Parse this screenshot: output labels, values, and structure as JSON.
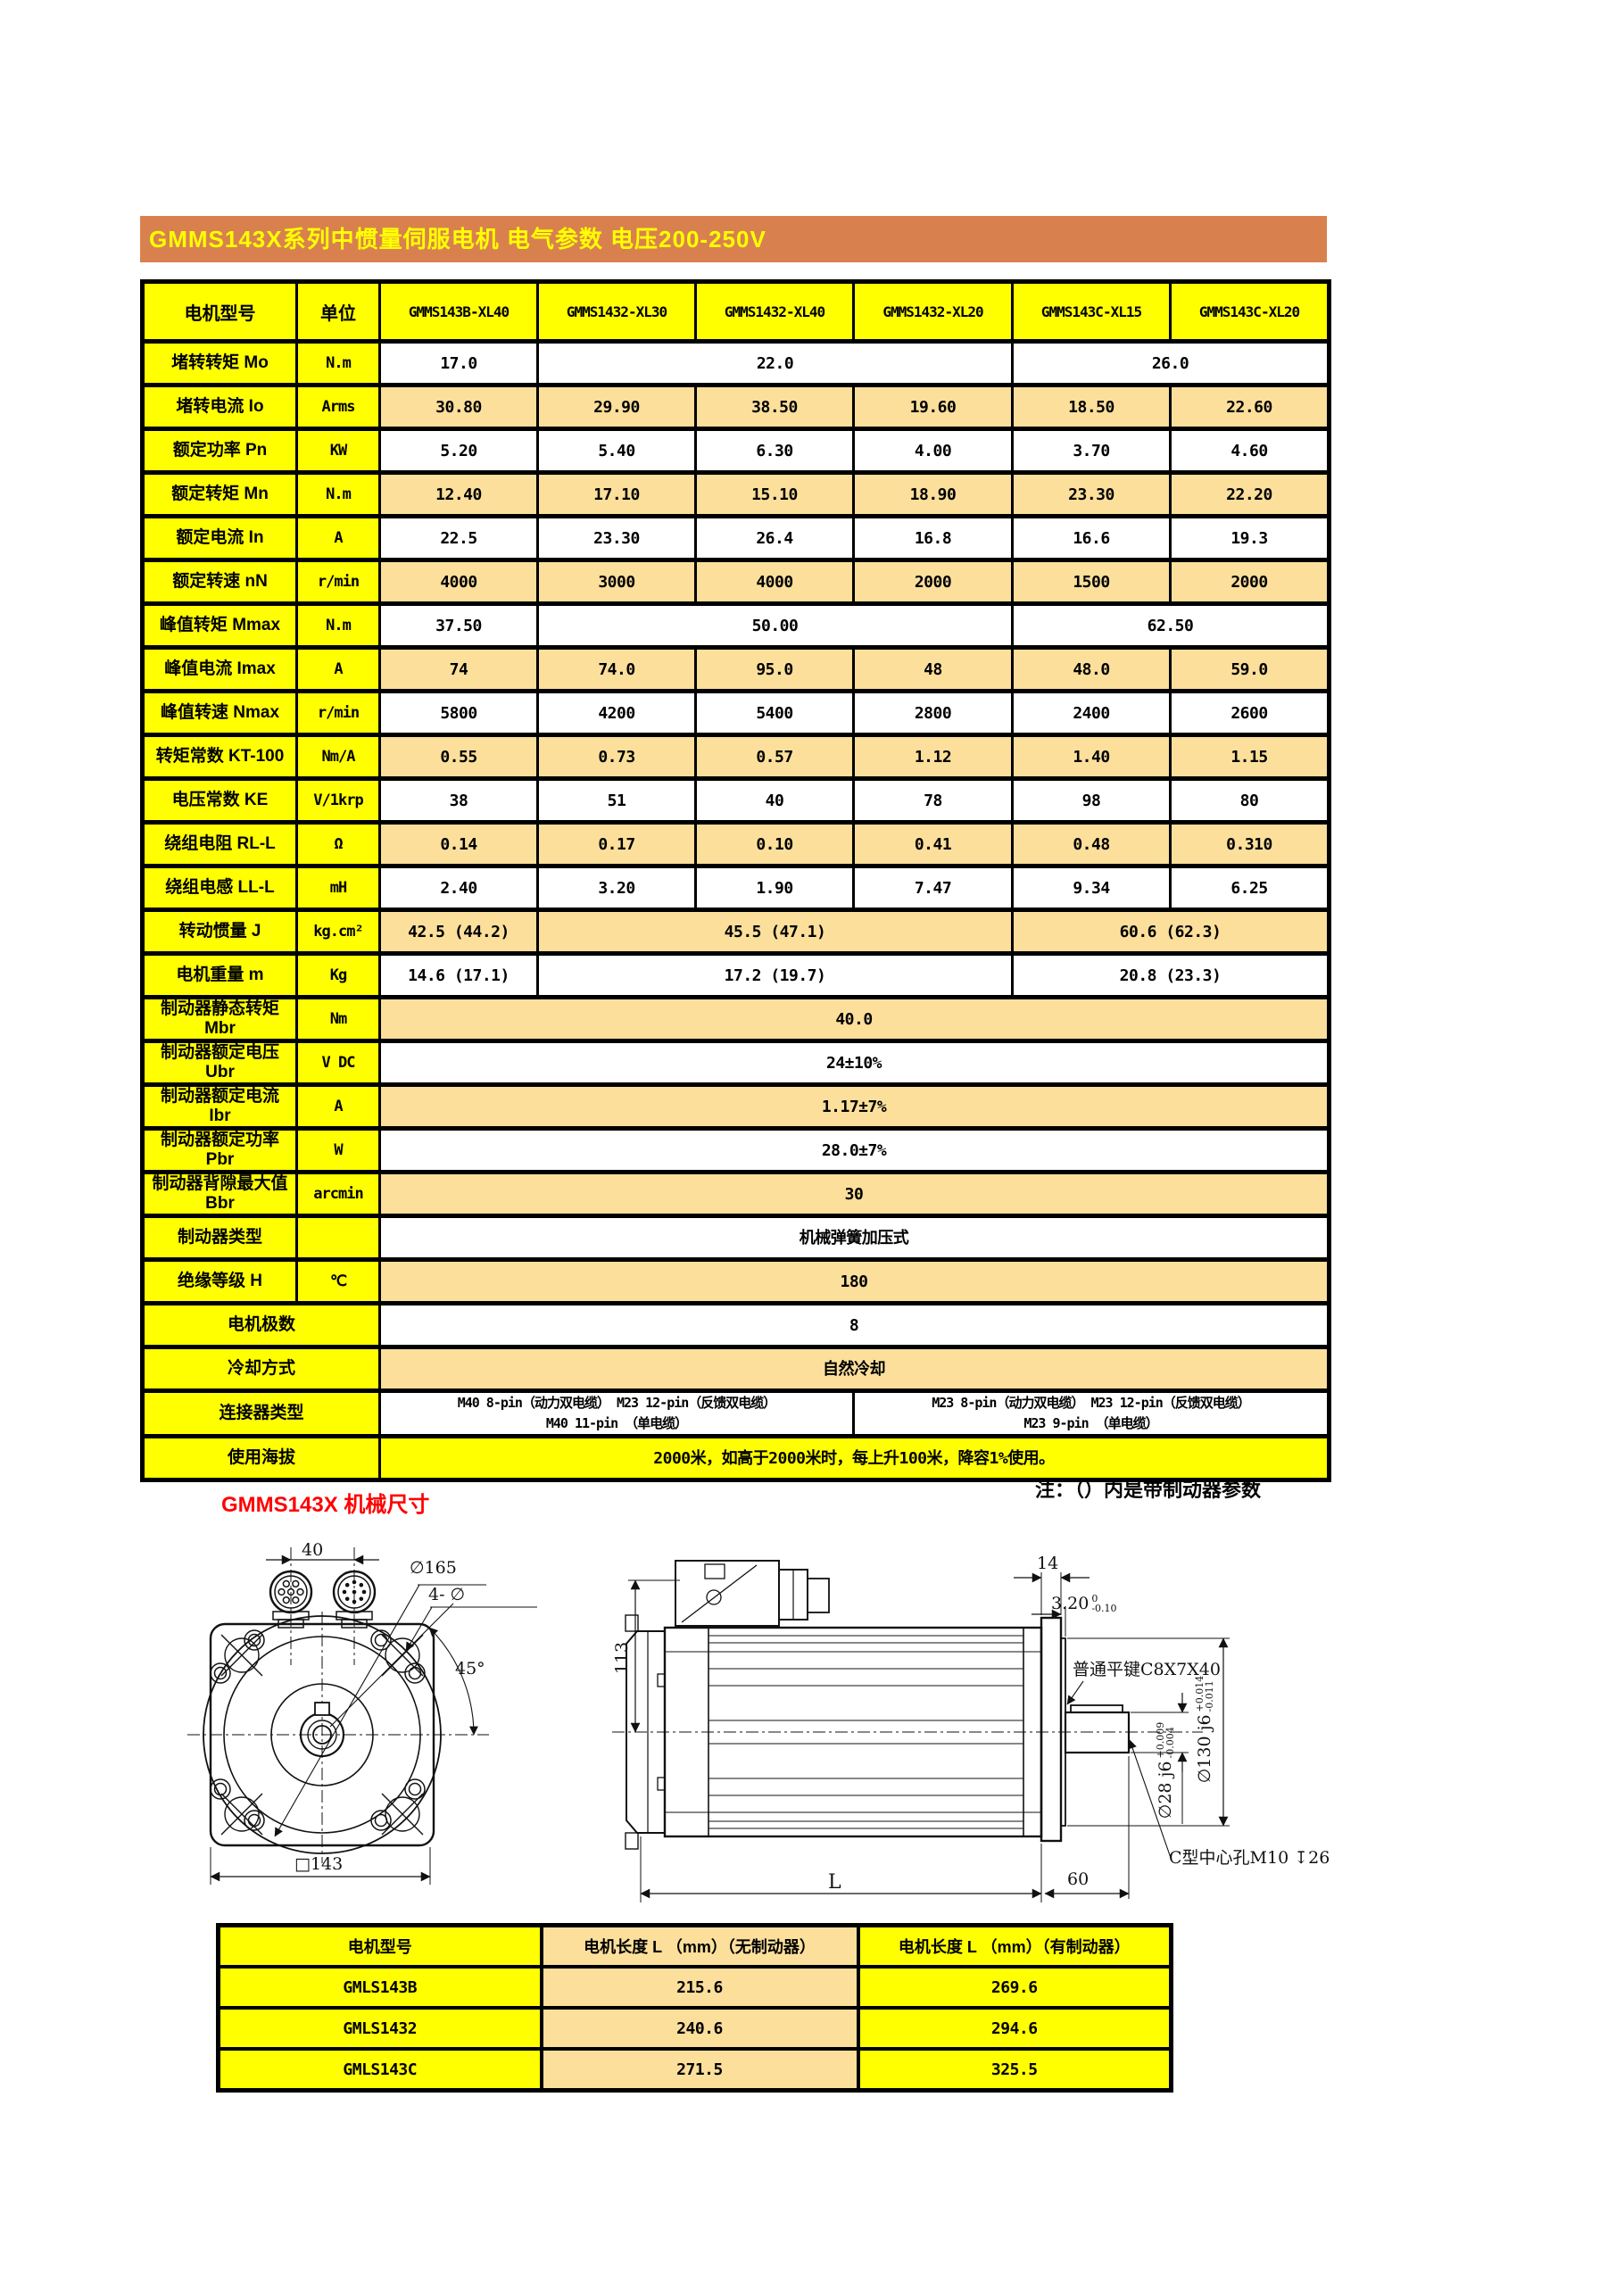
{
  "banner": {
    "title": "GMMS143X系列中惯量伺服电机 电气参数 电压200-250V",
    "bg": "#D9814E",
    "text_color": "#FFFF00"
  },
  "note": "注：（）内是带制动器参数",
  "section_title": "GMMS143X 机械尺寸",
  "colors": {
    "yellow": "#FFFF00",
    "tan": "#FBDF9B",
    "banner": "#D9814E",
    "red": "#FF0000"
  },
  "spec_table": {
    "columns": [
      "电机型号",
      "单位",
      "GMMS143B-XL40",
      "GMMS1432-XL30",
      "GMMS1432-XL40",
      "GMMS1432-XL20",
      "GMMS143C-XL15",
      "GMMS143C-XL20"
    ],
    "rows": [
      {
        "label": "堵转转矩 Mo",
        "unit": "N.m",
        "shade": "w",
        "cells": [
          {
            "v": "17.0",
            "span": 1
          },
          {
            "v": "22.0",
            "span": 3
          },
          {
            "v": "26.0",
            "span": 2
          }
        ]
      },
      {
        "label": "堵转电流 Io",
        "unit": "Arms",
        "shade": "t",
        "cells": [
          {
            "v": "30.80",
            "span": 1
          },
          {
            "v": "29.90",
            "span": 1
          },
          {
            "v": "38.50",
            "span": 1
          },
          {
            "v": "19.60",
            "span": 1
          },
          {
            "v": "18.50",
            "span": 1
          },
          {
            "v": "22.60",
            "span": 1
          }
        ]
      },
      {
        "label": "额定功率 Pn",
        "unit": "KW",
        "shade": "w",
        "cells": [
          {
            "v": "5.20",
            "span": 1
          },
          {
            "v": "5.40",
            "span": 1
          },
          {
            "v": "6.30",
            "span": 1
          },
          {
            "v": "4.00",
            "span": 1
          },
          {
            "v": "3.70",
            "span": 1
          },
          {
            "v": "4.60",
            "span": 1
          }
        ]
      },
      {
        "label": "额定转矩 Mn",
        "unit": "N.m",
        "shade": "t",
        "cells": [
          {
            "v": "12.40",
            "span": 1
          },
          {
            "v": "17.10",
            "span": 1
          },
          {
            "v": "15.10",
            "span": 1
          },
          {
            "v": "18.90",
            "span": 1
          },
          {
            "v": "23.30",
            "span": 1
          },
          {
            "v": "22.20",
            "span": 1
          }
        ]
      },
      {
        "label": "额定电流 In",
        "unit": "A",
        "shade": "w",
        "cells": [
          {
            "v": "22.5",
            "span": 1
          },
          {
            "v": "23.30",
            "span": 1
          },
          {
            "v": "26.4",
            "span": 1
          },
          {
            "v": "16.8",
            "span": 1
          },
          {
            "v": "16.6",
            "span": 1
          },
          {
            "v": "19.3",
            "span": 1
          }
        ]
      },
      {
        "label": "额定转速 nN",
        "unit": "r/min",
        "shade": "t",
        "cells": [
          {
            "v": "4000",
            "span": 1
          },
          {
            "v": "3000",
            "span": 1
          },
          {
            "v": "4000",
            "span": 1
          },
          {
            "v": "2000",
            "span": 1
          },
          {
            "v": "1500",
            "span": 1
          },
          {
            "v": "2000",
            "span": 1
          }
        ]
      },
      {
        "label": "峰值转矩 Mmax",
        "unit": "N.m",
        "shade": "w",
        "cells": [
          {
            "v": "37.50",
            "span": 1
          },
          {
            "v": "50.00",
            "span": 3
          },
          {
            "v": "62.50",
            "span": 2
          }
        ]
      },
      {
        "label": "峰值电流 Imax",
        "unit": "A",
        "shade": "t",
        "cells": [
          {
            "v": "74",
            "span": 1
          },
          {
            "v": "74.0",
            "span": 1
          },
          {
            "v": "95.0",
            "span": 1
          },
          {
            "v": "48",
            "span": 1
          },
          {
            "v": "48.0",
            "span": 1
          },
          {
            "v": "59.0",
            "span": 1
          }
        ]
      },
      {
        "label": "峰值转速 Nmax",
        "unit": "r/min",
        "shade": "w",
        "cells": [
          {
            "v": "5800",
            "span": 1
          },
          {
            "v": "4200",
            "span": 1
          },
          {
            "v": "5400",
            "span": 1
          },
          {
            "v": "2800",
            "span": 1
          },
          {
            "v": "2400",
            "span": 1
          },
          {
            "v": "2600",
            "span": 1
          }
        ]
      },
      {
        "label": "转矩常数 KT-100",
        "unit": "Nm/A",
        "shade": "t",
        "cells": [
          {
            "v": "0.55",
            "span": 1
          },
          {
            "v": "0.73",
            "span": 1
          },
          {
            "v": "0.57",
            "span": 1
          },
          {
            "v": "1.12",
            "span": 1
          },
          {
            "v": "1.40",
            "span": 1
          },
          {
            "v": "1.15",
            "span": 1
          }
        ]
      },
      {
        "label": "电压常数 KE",
        "unit": "V/1krp",
        "shade": "w",
        "cells": [
          {
            "v": "38",
            "span": 1
          },
          {
            "v": "51",
            "span": 1
          },
          {
            "v": "40",
            "span": 1
          },
          {
            "v": "78",
            "span": 1
          },
          {
            "v": "98",
            "span": 1
          },
          {
            "v": "80",
            "span": 1
          }
        ]
      },
      {
        "label": "绕组电阻 RL-L",
        "unit": "Ω",
        "shade": "t",
        "cells": [
          {
            "v": "0.14",
            "span": 1
          },
          {
            "v": "0.17",
            "span": 1
          },
          {
            "v": "0.10",
            "span": 1
          },
          {
            "v": "0.41",
            "span": 1
          },
          {
            "v": "0.48",
            "span": 1
          },
          {
            "v": "0.310",
            "span": 1
          }
        ]
      },
      {
        "label": "绕组电感 LL-L",
        "unit": "mH",
        "shade": "w",
        "cells": [
          {
            "v": "2.40",
            "span": 1
          },
          {
            "v": "3.20",
            "span": 1
          },
          {
            "v": "1.90",
            "span": 1
          },
          {
            "v": "7.47",
            "span": 1
          },
          {
            "v": "9.34",
            "span": 1
          },
          {
            "v": "6.25",
            "span": 1
          }
        ]
      },
      {
        "label": "转动惯量 J",
        "unit": "kg.cm²",
        "shade": "t",
        "cells": [
          {
            "v": "42.5 (44.2)",
            "span": 1
          },
          {
            "v": "45.5 (47.1)",
            "span": 3
          },
          {
            "v": "60.6 (62.3)",
            "span": 2
          }
        ]
      },
      {
        "label": "电机重量 m",
        "unit": "Kg",
        "shade": "w",
        "cells": [
          {
            "v": "14.6 (17.1)",
            "span": 1
          },
          {
            "v": "17.2 (19.7)",
            "span": 3
          },
          {
            "v": "20.8 (23.3)",
            "span": 2
          }
        ]
      },
      {
        "label": "制动器静态转矩\nMbr",
        "unit": "Nm",
        "shade": "t",
        "cells": [
          {
            "v": "40.0",
            "span": 6
          }
        ]
      },
      {
        "label": "制动器额定电压\nUbr",
        "unit": "V DC",
        "shade": "w",
        "cells": [
          {
            "v": "24±10%",
            "span": 6
          }
        ]
      },
      {
        "label": "制动器额定电流\nIbr",
        "unit": "A",
        "shade": "t",
        "cells": [
          {
            "v": "1.17±7%",
            "span": 6
          }
        ]
      },
      {
        "label": "制动器额定功率\nPbr",
        "unit": "W",
        "shade": "w",
        "cells": [
          {
            "v": "28.0±7%",
            "span": 6
          }
        ]
      },
      {
        "label": "制动器背隙最大值\nBbr",
        "unit": "arcmin",
        "shade": "t",
        "cells": [
          {
            "v": "30",
            "span": 6
          }
        ]
      },
      {
        "label": "制动器类型",
        "unit": "",
        "shade": "w",
        "cells": [
          {
            "v": "机械弹簧加压式",
            "span": 6
          }
        ]
      },
      {
        "label": "绝缘等级 H",
        "unit": "℃",
        "shade": "t",
        "cells": [
          {
            "v": "180",
            "span": 6
          }
        ]
      },
      {
        "label": "电机极数",
        "unit": null,
        "shade": "w",
        "cells": [
          {
            "v": "8",
            "span": 6
          }
        ]
      },
      {
        "label": "冷却方式",
        "unit": null,
        "shade": "t",
        "cells": [
          {
            "v": "自然冷却",
            "span": 6
          }
        ]
      },
      {
        "label": "连接器类型",
        "unit": null,
        "shade": "w",
        "small": true,
        "cells": [
          {
            "v": "M40 8-pin（动力双电缆） M23 12-pin（反馈双电缆）\nM40 11-pin （单电缆）",
            "span": 3
          },
          {
            "v": "M23 8-pin（动力双电缆） M23 12-pin（反馈双电缆）\nM23 9-pin （单电缆）",
            "span": 3
          }
        ]
      },
      {
        "label": "使用海拔",
        "unit": null,
        "shade": "y",
        "cells": [
          {
            "v": "2000米，如高于2000米时，每上升100米，降容1%使用。",
            "span": 6
          }
        ]
      }
    ]
  },
  "mech": {
    "front": {
      "conn_dist": "40",
      "flange_dia": "∅165",
      "mount_holes": "4- ∅",
      "hole_angle": "45°",
      "frame": "□143"
    },
    "side": {
      "half_height": "113",
      "flange_thk": "14",
      "step": {
        "main": "3.20",
        "tol_top": "0",
        "tol_bot": "-0.10"
      },
      "key": "普通平键C8X7X40",
      "shaft_boss": {
        "main": "∅130 j6",
        "tol_top": "+0.014",
        "tol_bot": "-0.011"
      },
      "shaft_dia": {
        "main": "∅28 j6",
        "tol_top": "+0.009",
        "tol_bot": "-0.004"
      },
      "center_hole": "C型中心孔M10 ↧26",
      "length_label": "L",
      "shaft_len": "60"
    }
  },
  "length_table": {
    "headers": [
      "电机型号",
      "电机长度 L （mm）（无制动器）",
      "电机长度 L （mm）（有制动器）"
    ],
    "rows": [
      [
        "GMLS143B",
        "215.6",
        "269.6"
      ],
      [
        "GMLS1432",
        "240.6",
        "294.6"
      ],
      [
        "GMLS143C",
        "271.5",
        "325.5"
      ]
    ]
  }
}
